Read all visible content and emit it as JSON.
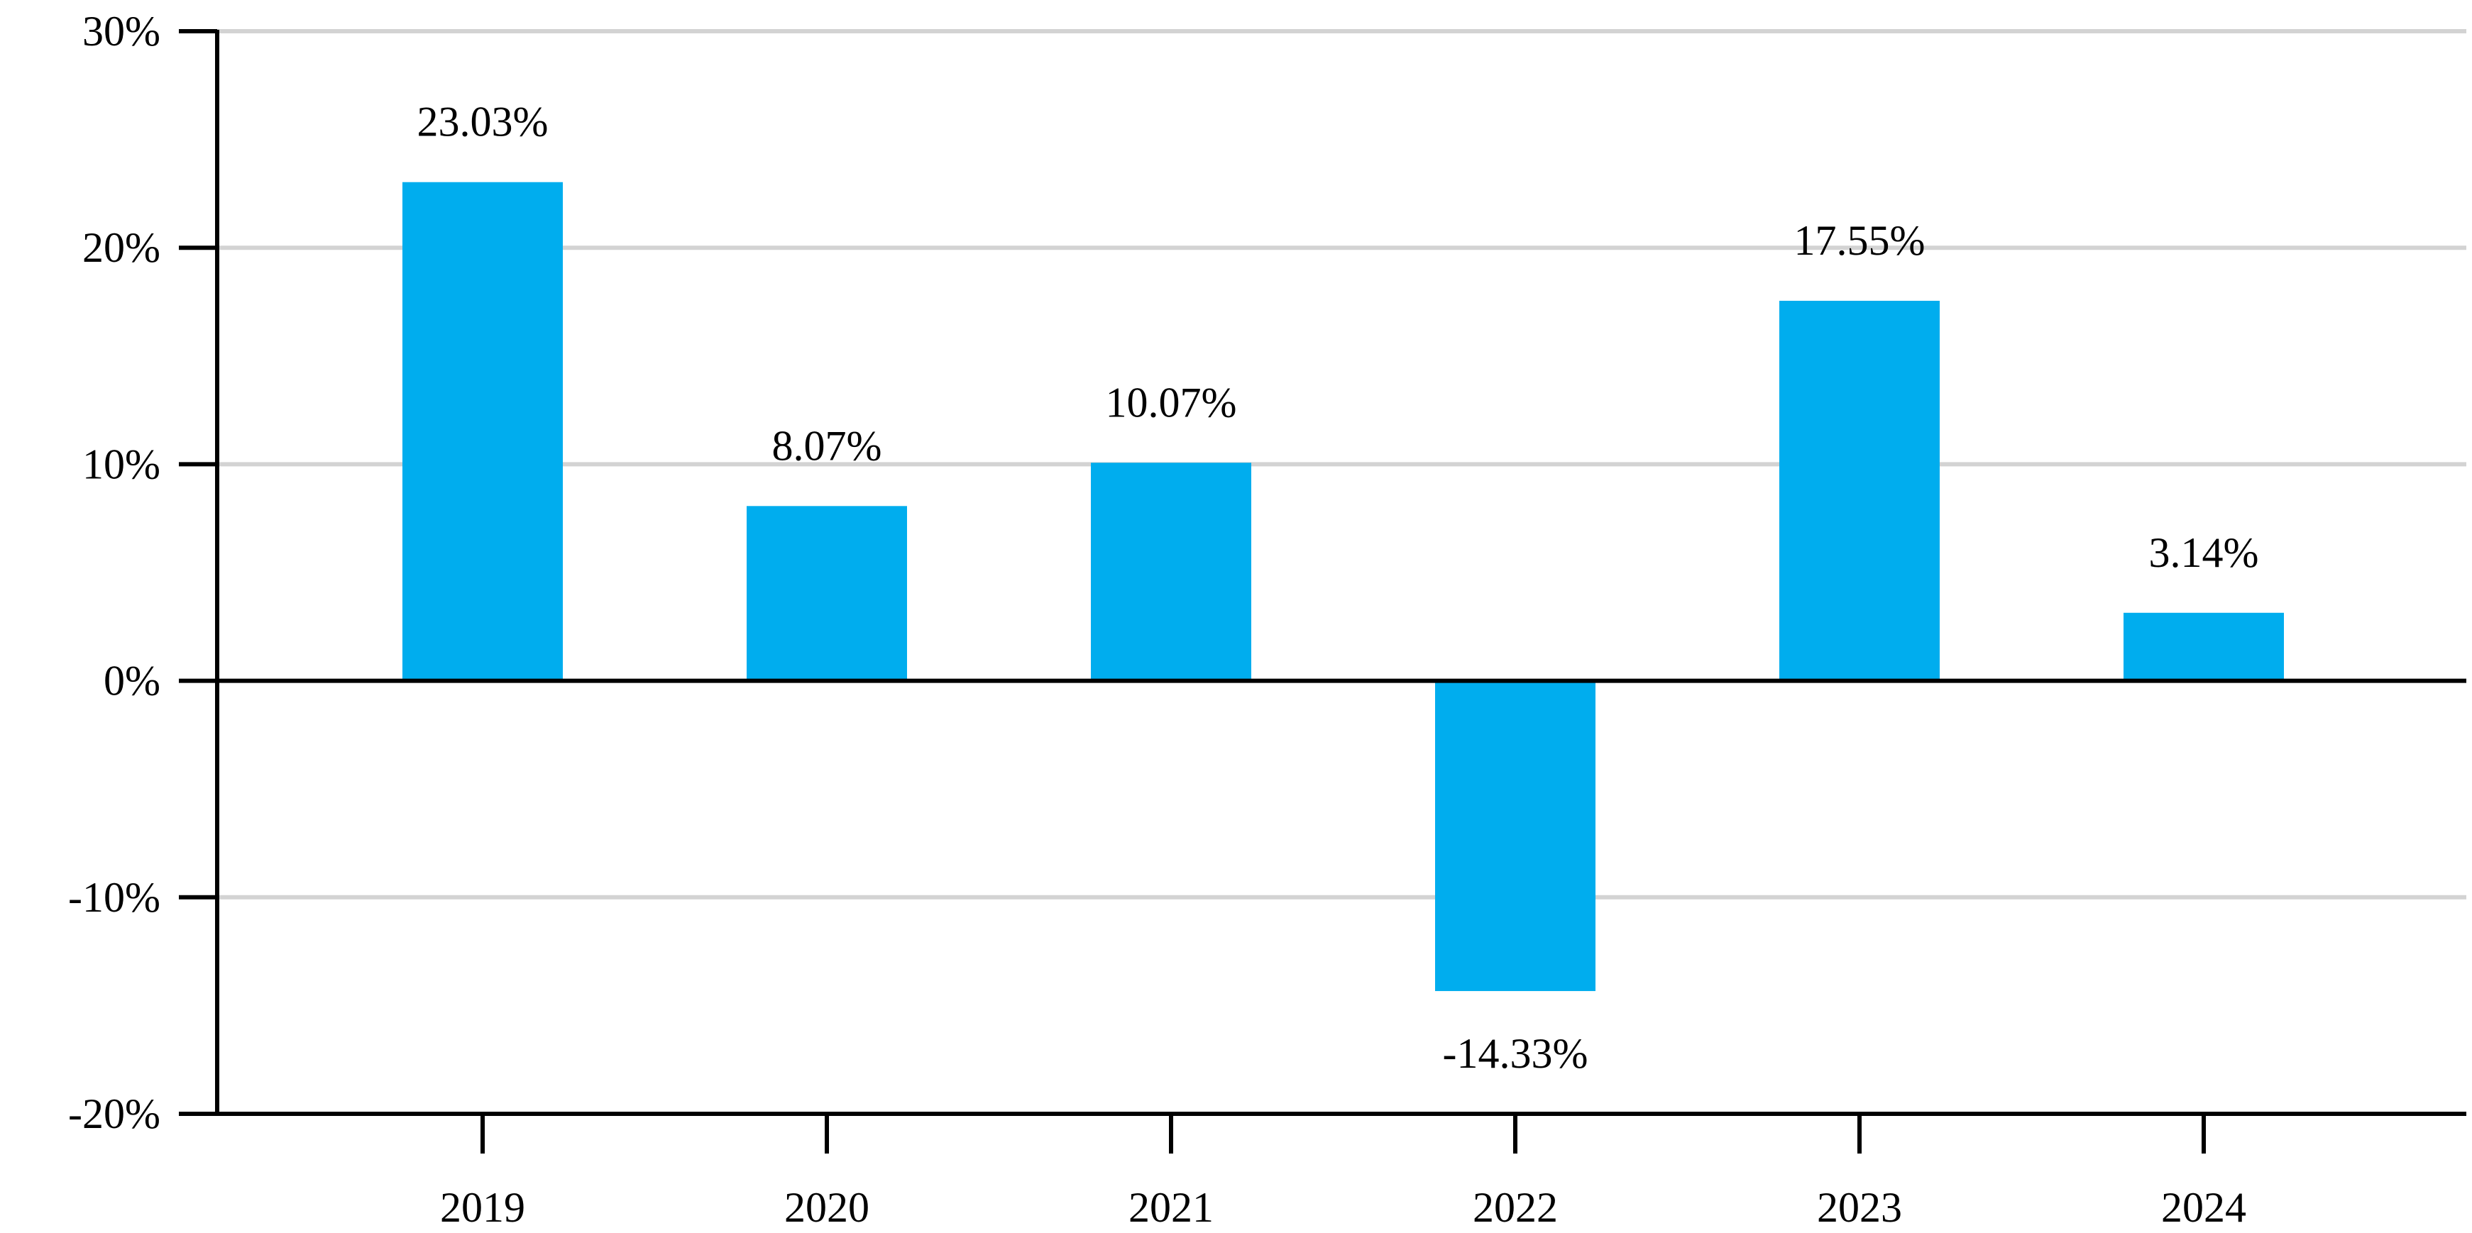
{
  "chart_data": {
    "type": "bar",
    "title": "",
    "xlabel": "",
    "ylabel": "",
    "categories": [
      "2019",
      "2020",
      "2021",
      "2022",
      "2023",
      "2024"
    ],
    "series": [
      {
        "values": [
          23.03,
          8.07,
          10.07,
          -14.33,
          17.55,
          3.14
        ],
        "labels": [
          "23.03%",
          "8.07%",
          "10.07%",
          "-14.33%",
          "17.55%",
          "3.14%"
        ],
        "color": "#00ADEE"
      }
    ],
    "ylim": [
      -20,
      30
    ],
    "yticks": [
      30,
      20,
      10,
      0,
      -10,
      -20
    ],
    "ytick_labels": [
      "30%",
      "20%",
      "10%",
      "0%",
      "-10%",
      "-20%"
    ],
    "grid": true,
    "grid_color": "#D3D3D3",
    "axis_color": "#000000",
    "legend": "none"
  }
}
